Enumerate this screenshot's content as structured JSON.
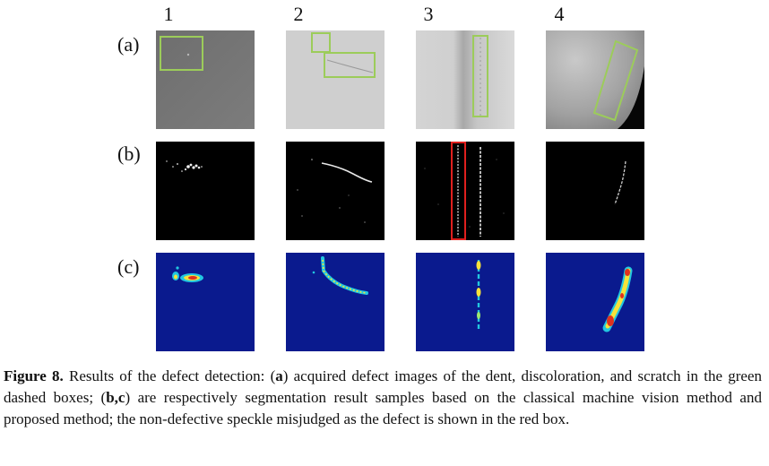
{
  "figure": {
    "column_numbers": [
      "1",
      "2",
      "3",
      "4"
    ],
    "row_labels": [
      "(a)",
      "(b)",
      "(c)"
    ],
    "caption": {
      "label": "Figure 8.",
      "t1": " Results of the defect detection: (",
      "b1": "a",
      "t2": ") acquired defect images of the dent, discoloration, and scratch in the green dashed boxes; (",
      "b2": "b,c",
      "t3": ") are respectively segmentation result samples based on the classical machine vision method and proposed method; the non-defective speckle misjudged as the defect is shown in the red box."
    },
    "colors": {
      "green_box": "#9ccc5a",
      "red_box": "#e0201e",
      "heatmap_bg": "#0a1a8e"
    }
  }
}
